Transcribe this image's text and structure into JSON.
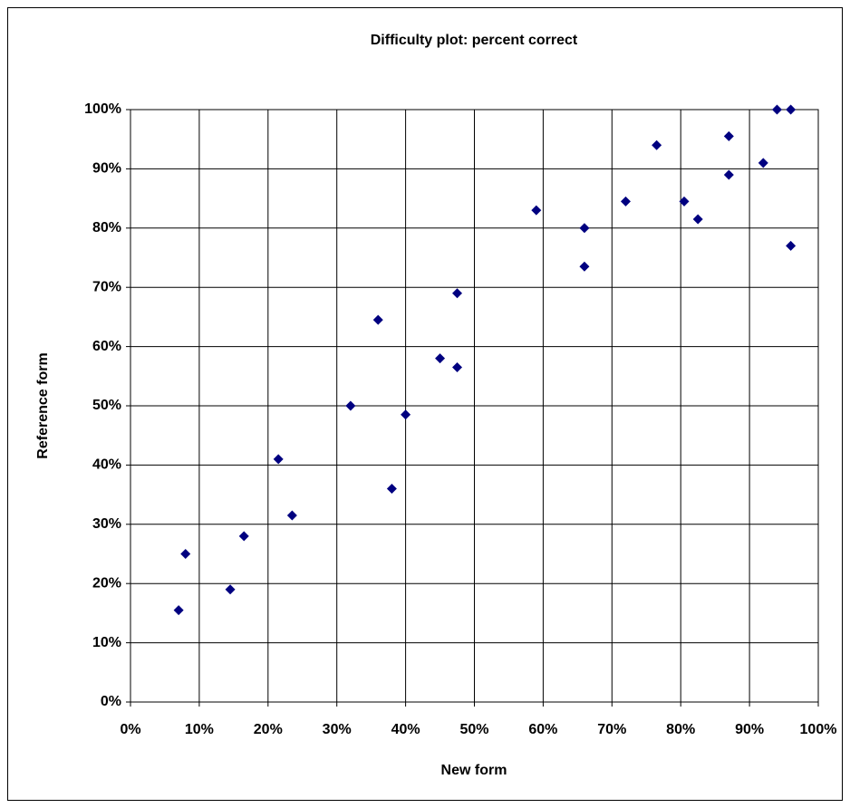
{
  "chart_data": {
    "type": "scatter",
    "title": "Difficulty plot: percent correct",
    "x_label": "New form",
    "y_label": "Reference form",
    "color": "#000080",
    "grid": true,
    "x": [
      7,
      8,
      14.5,
      16.5,
      21.5,
      23.5,
      32,
      36,
      38,
      40,
      45,
      47.5,
      47.5,
      59,
      66,
      66,
      72,
      76.5,
      80.5,
      82.5,
      87,
      87,
      92,
      94,
      96,
      96
    ],
    "values": [
      15.5,
      25,
      19,
      28,
      41,
      31.5,
      50,
      64.5,
      36,
      48.5,
      58,
      56.5,
      69,
      83,
      80,
      73.5,
      84.5,
      94,
      84.5,
      81.5,
      95.5,
      89,
      91,
      100,
      100,
      77
    ],
    "xlim": [
      0,
      100
    ],
    "ylim": [
      0,
      100
    ],
    "xticks": [
      {
        "value": 0,
        "label": "0%"
      },
      {
        "value": 10,
        "label": "10%"
      },
      {
        "value": 20,
        "label": "20%"
      },
      {
        "value": 30,
        "label": "30%"
      },
      {
        "value": 40,
        "label": "40%"
      },
      {
        "value": 50,
        "label": "50%"
      },
      {
        "value": 60,
        "label": "60%"
      },
      {
        "value": 70,
        "label": "70%"
      },
      {
        "value": 80,
        "label": "80%"
      },
      {
        "value": 90,
        "label": "90%"
      },
      {
        "value": 100,
        "label": "100%"
      }
    ],
    "yticks": [
      {
        "value": 0,
        "label": "0%"
      },
      {
        "value": 10,
        "label": "10%"
      },
      {
        "value": 20,
        "label": "20%"
      },
      {
        "value": 30,
        "label": "30%"
      },
      {
        "value": 40,
        "label": "40%"
      },
      {
        "value": 50,
        "label": "50%"
      },
      {
        "value": 60,
        "label": "60%"
      },
      {
        "value": 70,
        "label": "70%"
      },
      {
        "value": 80,
        "label": "80%"
      },
      {
        "value": 90,
        "label": "90%"
      },
      {
        "value": 100,
        "label": "100%"
      }
    ]
  }
}
